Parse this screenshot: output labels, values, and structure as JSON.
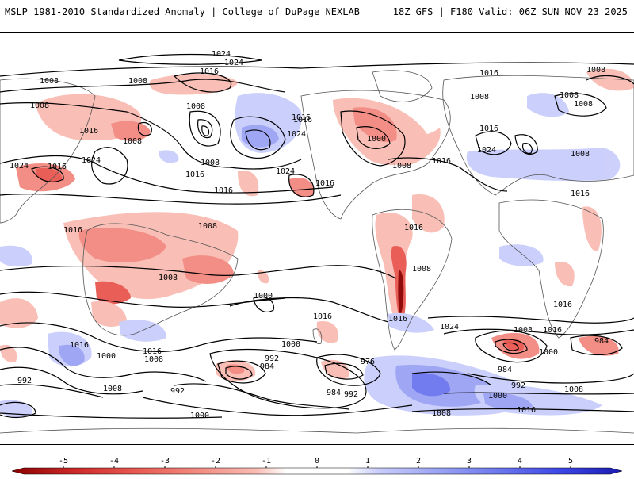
{
  "header": {
    "left_title": "MSLP 1981-2010 Standardized Anomaly | College of DuPage NEXLAB",
    "right_title": "18Z GFS | F180 Valid: 06Z SUN NOV 23 2025"
  },
  "colors": {
    "neg5": "#8b0000",
    "neg4": "#cc2828",
    "neg3": "#e8574f",
    "neg2": "#f2897f",
    "neg1": "#f9bcb3",
    "pos1": "#c9cdfb",
    "pos2": "#9aa3f4",
    "pos3": "#6b76ee",
    "pos4": "#3c46e6",
    "pos5": "#1a1ab0",
    "land": "#ffffff",
    "isobar": "#000000"
  },
  "colorbar": {
    "ticks": [
      "-5",
      "-4",
      "-3",
      "-2",
      "-1",
      "0",
      "1",
      "2",
      "3",
      "4",
      "5"
    ]
  },
  "isobar_labels": [
    "1024",
    "1024",
    "1016",
    "1008",
    "1008",
    "1008",
    "1016",
    "1008",
    "1016",
    "1008",
    "1024",
    "1016",
    "1024",
    "1016",
    "1008",
    "1024",
    "1016",
    "1016",
    "1024",
    "1000",
    "1008",
    "1016",
    "1016",
    "1008",
    "1024",
    "1008",
    "1016",
    "1016",
    "1008",
    "1008",
    "1008",
    "1016",
    "1016",
    "1008",
    "1016",
    "1008",
    "1008",
    "1000",
    "1016",
    "1016",
    "1024",
    "1016",
    "1000",
    "992",
    "984",
    "976",
    "984",
    "992",
    "984",
    "1008",
    "1000",
    "992",
    "1000",
    "992",
    "1008",
    "1008",
    "1016",
    "1000",
    "992",
    "984",
    "1016",
    "1000",
    "1008",
    "1016",
    "1016",
    "1008"
  ]
}
